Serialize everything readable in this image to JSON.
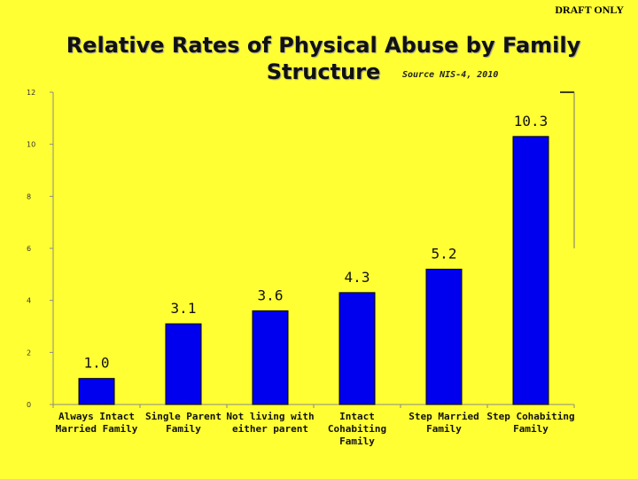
{
  "watermark": "DRAFT ONLY",
  "title": "Relative Rates of Physical Abuse by Family Structure",
  "source": "Source NIS-4, 2010",
  "colors": {
    "background": "#ffff33",
    "bar": "#0000ee",
    "axis": "#888888"
  },
  "chart_data": {
    "type": "bar",
    "title": "Relative Rates of Physical Abuse by Family Structure",
    "xlabel": "",
    "ylabel": "",
    "ylim": [
      0,
      12
    ],
    "yticks": [
      0,
      2,
      4,
      6,
      8,
      10,
      12
    ],
    "grid": false,
    "categories": [
      "Always Intact Married Family",
      "Single Parent Family",
      "Not living with either parent",
      "Intact Cohabiting Family",
      "Step Married Family",
      "Step Cohabiting Family"
    ],
    "category_lines": [
      [
        "Always Intact",
        "Married Family"
      ],
      [
        "Single Parent",
        "Family"
      ],
      [
        "Not living with",
        "either parent"
      ],
      [
        "Intact Cohabiting",
        "Family"
      ],
      [
        "Step Married",
        "Family"
      ],
      [
        "Step Cohabiting",
        "Family"
      ]
    ],
    "values": [
      1.0,
      3.1,
      3.6,
      4.3,
      5.2,
      10.3
    ],
    "value_labels": [
      "1.0",
      "3.1",
      "3.6",
      "4.3",
      "5.2",
      "10.3"
    ]
  }
}
